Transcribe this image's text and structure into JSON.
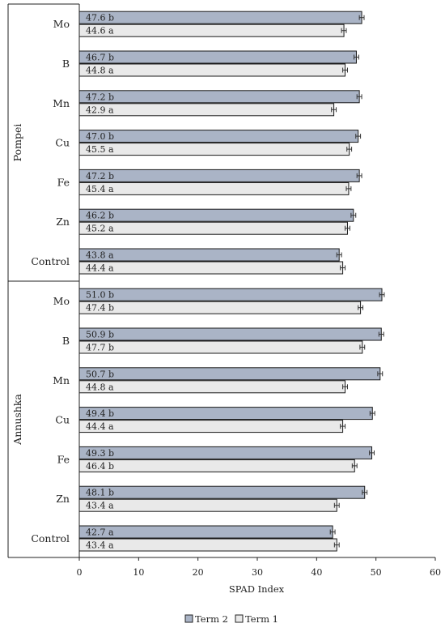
{
  "chart_data": {
    "type": "bar",
    "orientation": "horizontal",
    "xlabel": "SPAD Index",
    "xlim": [
      0,
      60
    ],
    "xticks": [
      0,
      10,
      20,
      30,
      40,
      50,
      60
    ],
    "grid": false,
    "legend_position": "bottom",
    "series": [
      {
        "name": "Term 2",
        "color": "#aab4c6"
      },
      {
        "name": "Term 1",
        "color": "#e9e9e9"
      }
    ],
    "groups": [
      {
        "name": "Pompei",
        "categories": [
          {
            "name": "Mo",
            "term2": 47.6,
            "term2_label": "47.6 b",
            "term1": 44.6,
            "term1_label": "44.6 a"
          },
          {
            "name": "B",
            "term2": 46.7,
            "term2_label": "46.7 b",
            "term1": 44.8,
            "term1_label": "44.8 a"
          },
          {
            "name": "Mn",
            "term2": 47.2,
            "term2_label": "47.2 b",
            "term1": 42.9,
            "term1_label": "42.9 a"
          },
          {
            "name": "Cu",
            "term2": 47.0,
            "term2_label": "47.0 b",
            "term1": 45.5,
            "term1_label": "45.5 a"
          },
          {
            "name": "Fe",
            "term2": 47.2,
            "term2_label": "47.2 b",
            "term1": 45.4,
            "term1_label": "45.4 a"
          },
          {
            "name": "Zn",
            "term2": 46.2,
            "term2_label": "46.2 b",
            "term1": 45.2,
            "term1_label": "45.2 a"
          },
          {
            "name": "Control",
            "term2": 43.8,
            "term2_label": "43.8 a",
            "term1": 44.4,
            "term1_label": "44.4 a"
          }
        ]
      },
      {
        "name": "Annushka",
        "categories": [
          {
            "name": "Mo",
            "term2": 51.0,
            "term2_label": "51.0 b",
            "term1": 47.4,
            "term1_label": "47.4 b"
          },
          {
            "name": "B",
            "term2": 50.9,
            "term2_label": "50.9 b",
            "term1": 47.7,
            "term1_label": "47.7 b"
          },
          {
            "name": "Mn",
            "term2": 50.7,
            "term2_label": "50.7 b",
            "term1": 44.8,
            "term1_label": "44.8 a"
          },
          {
            "name": "Cu",
            "term2": 49.4,
            "term2_label": "49.4 b",
            "term1": 44.4,
            "term1_label": "44.4 a"
          },
          {
            "name": "Fe",
            "term2": 49.3,
            "term2_label": "49.3 b",
            "term1": 46.4,
            "term1_label": "46.4 b"
          },
          {
            "name": "Zn",
            "term2": 48.1,
            "term2_label": "48.1 b",
            "term1": 43.4,
            "term1_label": "43.4 a"
          },
          {
            "name": "Control",
            "term2": 42.7,
            "term2_label": "42.7 a",
            "term1": 43.4,
            "term1_label": "43.4 a"
          }
        ]
      }
    ]
  }
}
